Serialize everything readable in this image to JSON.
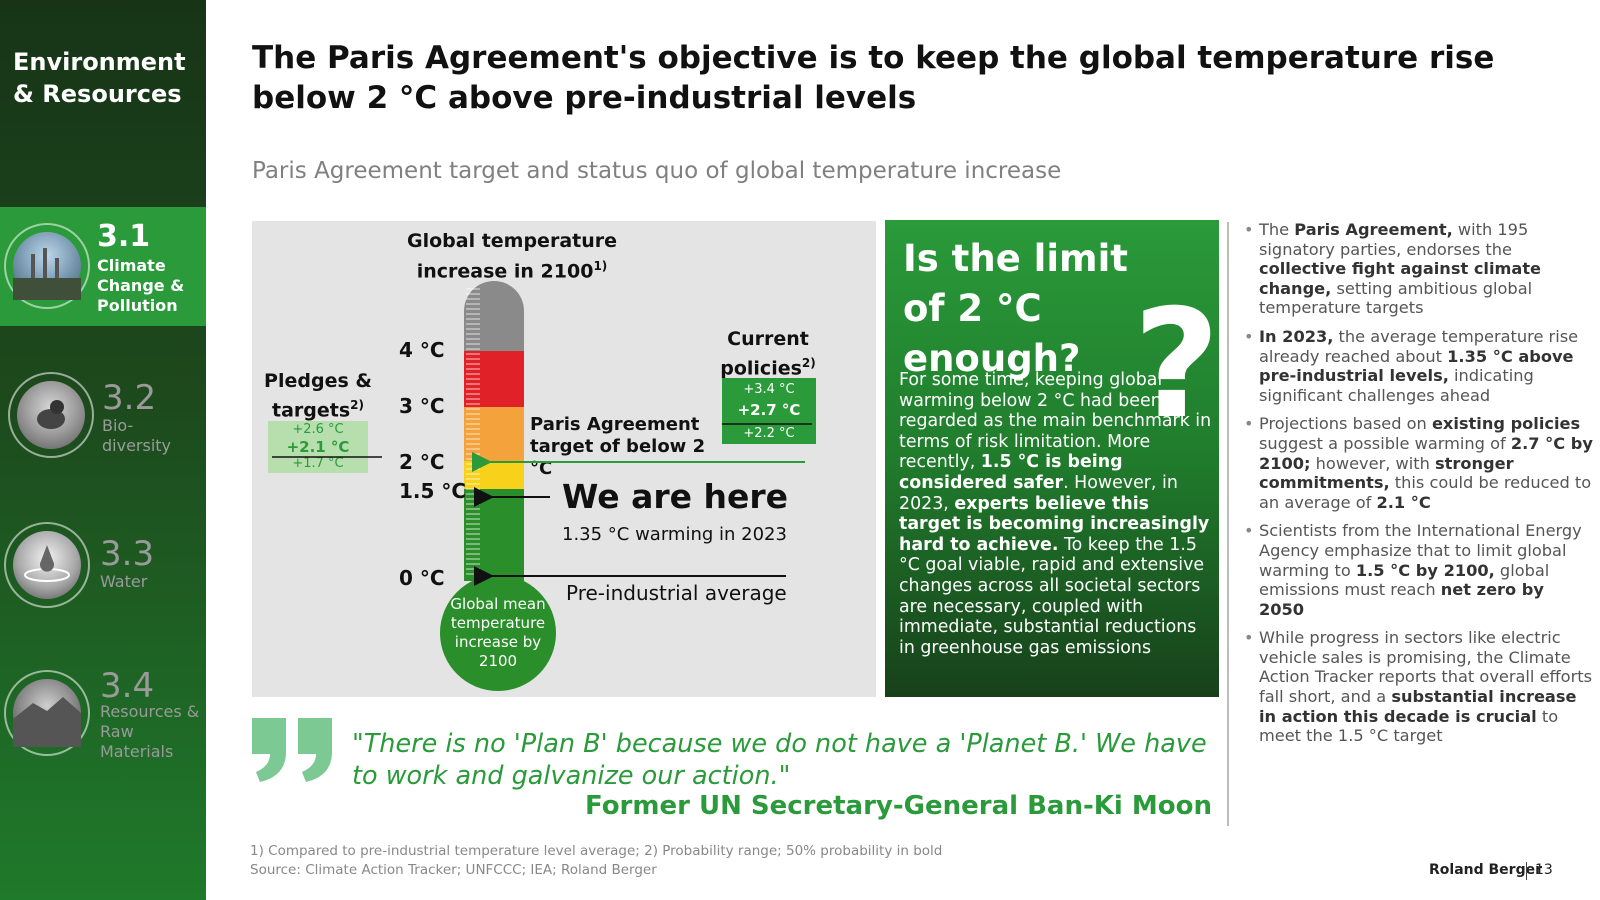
{
  "sidebar": {
    "title": "Environment & Resources",
    "items": [
      {
        "num": "3.1",
        "label": "Climate Change & Pollution",
        "active": true
      },
      {
        "num": "3.2",
        "label": "Bio-diversity",
        "active": false
      },
      {
        "num": "3.3",
        "label": "Water",
        "active": false
      },
      {
        "num": "3.4",
        "label": "Resources & Raw Materials",
        "active": false
      }
    ]
  },
  "header": {
    "title": "The Paris Agreement's objective is to keep the global temperature rise below 2 °C above pre-industrial levels",
    "subtitle": "Paris Agreement target and status quo of global temperature increase"
  },
  "chart": {
    "title": "Global temperature increase in 2100",
    "title_sup": "1)",
    "ticks": [
      "4 °C",
      "3 °C",
      "2 °C",
      "1.5 °C",
      "0 °C"
    ],
    "bulb_label": "Global mean temperature increase by 2100",
    "pledges_title": "Pledges & targets",
    "pledges_sup": "2)",
    "pledges_high": "+2.6 °C",
    "pledges_mid": "+2.1 °C",
    "pledges_low": "+1.7 °C",
    "policies_title": "Current policies",
    "policies_sup": "2)",
    "policies_high": "+3.4 °C",
    "policies_mid": "+2.7 °C",
    "policies_low": "+2.2 °C",
    "paris_label": "Paris Agreement target of below 2 °C",
    "here_label": "We are here",
    "here_sub": "1.35 °C warming in 2023",
    "pre_label": "Pre-industrial average",
    "colors": {
      "grey": "#8a8a8a",
      "red": "#e02228",
      "orange": "#f4a23c",
      "yellow": "#f8d21a",
      "green": "#2a8f2a"
    }
  },
  "green_box": {
    "title": "Is the limit of 2 °C enough?",
    "question_mark": "?",
    "paragraph": [
      {
        "t": "For some time, keeping global warming below 2 °C had been regarded as the main benchmark in terms of risk limitation. More recently, ",
        "b": false
      },
      {
        "t": "1.5 °C is being considered safer",
        "b": true
      },
      {
        "t": ". However, in 2023, ",
        "b": false
      },
      {
        "t": "experts believe this target is becoming increasingly hard to achieve.",
        "b": true
      },
      {
        "t": " To keep the 1.5 °C goal viable, rapid and extensive changes across all societal sectors are necessary, coupled with immediate, substantial reductions in greenhouse gas emissions",
        "b": false
      }
    ]
  },
  "bullets": [
    [
      {
        "t": "The ",
        "b": false
      },
      {
        "t": "Paris Agreement,",
        "b": true
      },
      {
        "t": " with 195 signatory parties, endorses the ",
        "b": false
      },
      {
        "t": "collective fight against climate change,",
        "b": true
      },
      {
        "t": " setting ambitious global temperature targets",
        "b": false
      }
    ],
    [
      {
        "t": "In 2023,",
        "b": true
      },
      {
        "t": " the average temperature rise already reached about ",
        "b": false
      },
      {
        "t": "1.35 °C above pre-industrial levels,",
        "b": true
      },
      {
        "t": " indicating significant challenges ahead",
        "b": false
      }
    ],
    [
      {
        "t": "Projections based on ",
        "b": false
      },
      {
        "t": "existing policies",
        "b": true
      },
      {
        "t": " suggest a possible warming of ",
        "b": false
      },
      {
        "t": "2.7 °C by 2100;",
        "b": true
      },
      {
        "t": " however, with ",
        "b": false
      },
      {
        "t": "stronger commitments,",
        "b": true
      },
      {
        "t": " this could be reduced to an average of ",
        "b": false
      },
      {
        "t": "2.1 °C",
        "b": true
      }
    ],
    [
      {
        "t": "Scientists from the International Energy Agency emphasize that to limit global warming to ",
        "b": false
      },
      {
        "t": "1.5 °C by 2100,",
        "b": true
      },
      {
        "t": " global emissions must reach ",
        "b": false
      },
      {
        "t": "net zero by 2050",
        "b": true
      }
    ],
    [
      {
        "t": "While progress in sectors like electric vehicle sales is promising, the Climate Action Tracker reports that overall efforts fall short, and a ",
        "b": false
      },
      {
        "t": "substantial increase in action this decade is crucial",
        "b": true
      },
      {
        "t": " to meet the 1.5 °C target",
        "b": false
      }
    ]
  ],
  "quote": {
    "text": "\"There is no 'Plan B' because we do not have a 'Planet B.' We have to work and galvanize our action.\"",
    "author": "Former UN Secretary-General Ban-Ki Moon"
  },
  "footer": {
    "note1": "1) Compared to pre-industrial temperature level average; 2) Probability range; 50% probability in bold",
    "note2": "Source: Climate Action Tracker; UNFCCC; IEA; Roland Berger",
    "brand": "Roland Berger",
    "page": "13"
  }
}
